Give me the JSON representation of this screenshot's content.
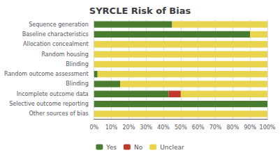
{
  "chart_data": {
    "type": "bar",
    "orientation": "horizontal",
    "stacked": true,
    "title": "SYRCLE Risk of Bias",
    "categories": [
      "Other sources of bias",
      "Selective outcome reporting",
      "Incomplete outcome data",
      "Blinding",
      "Random outcome assessment",
      "Blinding",
      "Random housing",
      "Allocation concealment",
      "Baseline characteristics",
      "Sequence generation"
    ],
    "series": [
      {
        "name": "Yes",
        "color": "#4a7c30",
        "values": [
          0,
          100,
          43,
          15,
          2,
          0,
          0,
          0,
          90,
          45
        ]
      },
      {
        "name": "No",
        "color": "#c0392b",
        "values": [
          0,
          0,
          7,
          0,
          0,
          0,
          0,
          0,
          0,
          0
        ]
      },
      {
        "name": "Unclear",
        "color": "#e8d44d",
        "values": [
          100,
          0,
          50,
          85,
          98,
          100,
          100,
          100,
          10,
          55
        ]
      }
    ],
    "xlim": [
      0,
      100
    ],
    "xticks": [
      {
        "value": 0,
        "label": "0%"
      },
      {
        "value": 10,
        "label": "10%"
      },
      {
        "value": 20,
        "label": "20%"
      },
      {
        "value": 30,
        "label": "30%"
      },
      {
        "value": 40,
        "label": "40%"
      },
      {
        "value": 50,
        "label": "50%"
      },
      {
        "value": 60,
        "label": "60%"
      },
      {
        "value": 70,
        "label": "70%"
      },
      {
        "value": 80,
        "label": "80%"
      },
      {
        "value": 90,
        "label": "90%"
      },
      {
        "value": 100,
        "label": "100%"
      }
    ],
    "grid": true,
    "legend": "bottom"
  }
}
